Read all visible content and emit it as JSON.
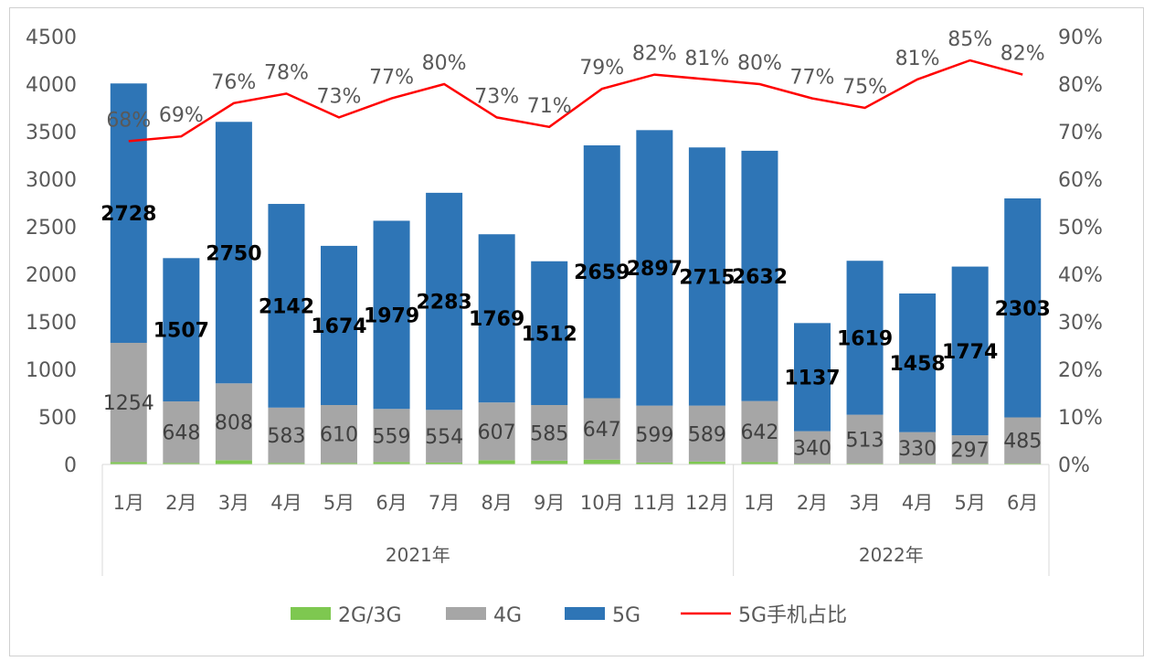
{
  "chart_data": {
    "type": "bar",
    "stacked": true,
    "categories": [
      "1月",
      "2月",
      "3月",
      "4月",
      "5月",
      "6月",
      "7月",
      "8月",
      "9月",
      "10月",
      "11月",
      "12月",
      "1月",
      "2月",
      "3月",
      "4月",
      "5月",
      "6月"
    ],
    "groups": [
      {
        "label": "2021年",
        "count": 12
      },
      {
        "label": "2022年",
        "count": 6
      }
    ],
    "series": [
      {
        "name": "2G/3G",
        "color": "#7ec850",
        "values": [
          25,
          15,
          45,
          15,
          15,
          25,
          20,
          45,
          40,
          50,
          20,
          30,
          25,
          10,
          10,
          10,
          10,
          10
        ]
      },
      {
        "name": "4G",
        "color": "#a6a6a6",
        "values": [
          1254,
          648,
          808,
          583,
          610,
          559,
          554,
          607,
          585,
          647,
          599,
          589,
          642,
          340,
          513,
          330,
          297,
          485
        ]
      },
      {
        "name": "5G",
        "color": "#2e75b6",
        "values": [
          2728,
          1507,
          2750,
          2142,
          1674,
          1979,
          2283,
          1769,
          1512,
          2659,
          2897,
          2715,
          2632,
          1137,
          1619,
          1458,
          1774,
          2303
        ]
      }
    ],
    "line": {
      "name": "5G手机占比",
      "color": "#ff0000",
      "axis": "right",
      "values": [
        68,
        69,
        76,
        78,
        73,
        77,
        80,
        73,
        71,
        79,
        82,
        81,
        80,
        77,
        75,
        81,
        85,
        82
      ]
    },
    "left_axis": {
      "ylim": [
        0,
        4500
      ],
      "ticks": [
        0,
        500,
        1000,
        1500,
        2000,
        2500,
        3000,
        3500,
        4000,
        4500
      ]
    },
    "right_axis": {
      "ylim": [
        0,
        90
      ],
      "ticks": [
        "0%",
        "10%",
        "20%",
        "30%",
        "40%",
        "50%",
        "60%",
        "70%",
        "80%",
        "90%"
      ]
    },
    "legend": "bottom",
    "grid": false
  }
}
